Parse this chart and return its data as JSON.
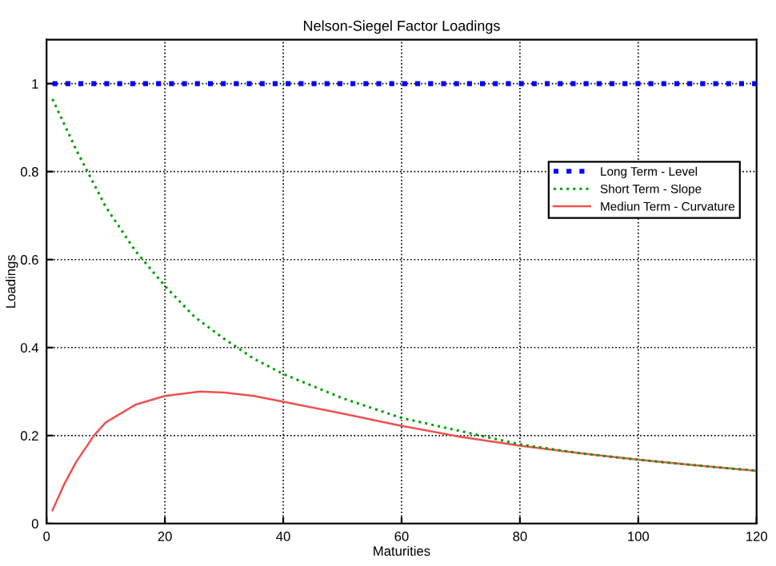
{
  "chart_data": {
    "type": "line",
    "title": "Nelson-Siegel Factor Loadings",
    "xlabel": "Maturities",
    "ylabel": "Loadings",
    "xlim": [
      0,
      120
    ],
    "ylim": [
      0,
      1.1
    ],
    "xticks": [
      0,
      20,
      40,
      60,
      80,
      100,
      120
    ],
    "yticks": [
      0,
      0.2,
      0.4,
      0.6,
      0.8,
      1
    ],
    "grid": true,
    "legend": "top right",
    "series": [
      {
        "name": "Long Term - Level",
        "color": "#0000ff",
        "line_style": "dotted",
        "x": [
          1,
          120
        ],
        "values": [
          1,
          1
        ]
      },
      {
        "name": "Short Term - Slope",
        "color": "#00a000",
        "line_style": "dotted",
        "x": [
          1,
          5,
          10,
          15,
          20,
          25,
          30,
          35,
          40,
          50,
          60,
          70,
          80,
          90,
          100,
          110,
          120
        ],
        "values": [
          0.965,
          0.85,
          0.72,
          0.62,
          0.54,
          0.47,
          0.42,
          0.375,
          0.34,
          0.285,
          0.24,
          0.21,
          0.18,
          0.16,
          0.145,
          0.132,
          0.12
        ]
      },
      {
        "name": "Mediun Term - Curvature",
        "color": "#f05050",
        "line_style": "solid",
        "x": [
          1,
          3,
          5,
          8,
          10,
          15,
          20,
          26,
          30,
          35,
          40,
          50,
          60,
          70,
          80,
          90,
          100,
          110,
          120
        ],
        "values": [
          0.03,
          0.09,
          0.14,
          0.2,
          0.23,
          0.27,
          0.29,
          0.3,
          0.298,
          0.29,
          0.277,
          0.25,
          0.222,
          0.197,
          0.177,
          0.16,
          0.145,
          0.132,
          0.12
        ]
      }
    ]
  }
}
